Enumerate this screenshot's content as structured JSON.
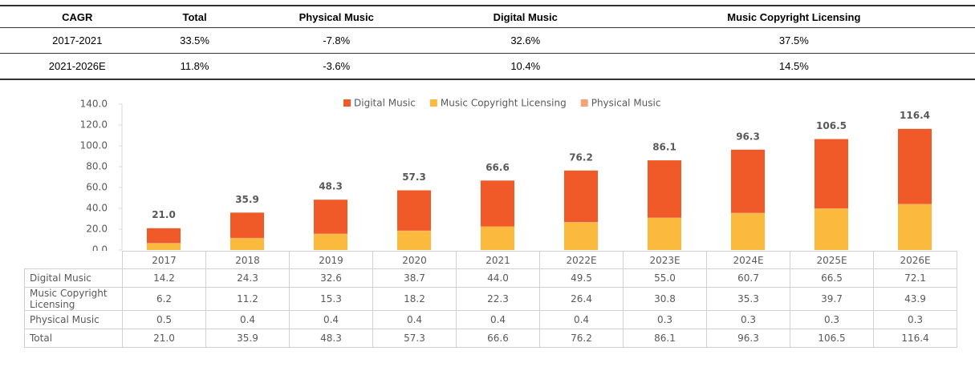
{
  "cagr_table": {
    "columns": [
      "CAGR",
      "Total",
      "Physical Music",
      "Digital Music",
      "Music Copyright Licensing"
    ],
    "rows": [
      [
        "2017-2021",
        "33.5%",
        "-7.8%",
        "32.6%",
        "37.5%"
      ],
      [
        "2021-2026E",
        "11.8%",
        "-3.6%",
        "10.4%",
        "14.5%"
      ]
    ]
  },
  "chart_data": {
    "type": "stacked_bar",
    "categories": [
      "2017",
      "2018",
      "2019",
      "2020",
      "2021",
      "2022E",
      "2023E",
      "2024E",
      "2025E",
      "2026E"
    ],
    "series": [
      {
        "name": "Digital Music",
        "color": "#f05a28",
        "values": [
          14.2,
          24.3,
          32.6,
          38.7,
          44.0,
          49.5,
          55.0,
          60.7,
          66.5,
          72.1
        ],
        "value_labels": [
          "14.2",
          "24.3",
          "32.6",
          "38.7",
          "44.0",
          "49.5",
          "55.0",
          "60.7",
          "66.5",
          "72.1"
        ]
      },
      {
        "name": "Music Copyright Licensing",
        "color": "#fbb93d",
        "values": [
          6.2,
          11.2,
          15.3,
          18.2,
          22.3,
          26.4,
          30.8,
          35.3,
          39.7,
          43.9
        ],
        "value_labels": [
          "6.2",
          "11.2",
          "15.3",
          "18.2",
          "22.3",
          "26.4",
          "30.8",
          "35.3",
          "39.7",
          "43.9"
        ]
      },
      {
        "name": "Physical Music",
        "color": "#f4a373",
        "values": [
          0.5,
          0.4,
          0.4,
          0.4,
          0.4,
          0.4,
          0.3,
          0.3,
          0.3,
          0.3
        ],
        "value_labels": [
          "0.5",
          "0.4",
          "0.4",
          "0.4",
          "0.4",
          "0.4",
          "0.3",
          "0.3",
          "0.3",
          "0.3"
        ]
      }
    ],
    "total": {
      "name": "Total",
      "values": [
        21.0,
        35.9,
        48.3,
        57.3,
        66.6,
        76.2,
        86.1,
        96.3,
        106.5,
        116.4
      ],
      "value_labels": [
        "21.0",
        "35.9",
        "48.3",
        "57.3",
        "66.6",
        "76.2",
        "86.1",
        "96.3",
        "106.5",
        "116.4"
      ]
    },
    "ylim": [
      0,
      140
    ],
    "yticks": [
      {
        "value": 0,
        "label": "0.0"
      },
      {
        "value": 20,
        "label": "20.0"
      },
      {
        "value": 40,
        "label": "40.0"
      },
      {
        "value": 60,
        "label": "60.0"
      },
      {
        "value": 80,
        "label": "80.0"
      },
      {
        "value": 100,
        "label": "100.0"
      },
      {
        "value": 120,
        "label": "120.0"
      },
      {
        "value": 140,
        "label": "140.0"
      }
    ],
    "legend": "top"
  }
}
